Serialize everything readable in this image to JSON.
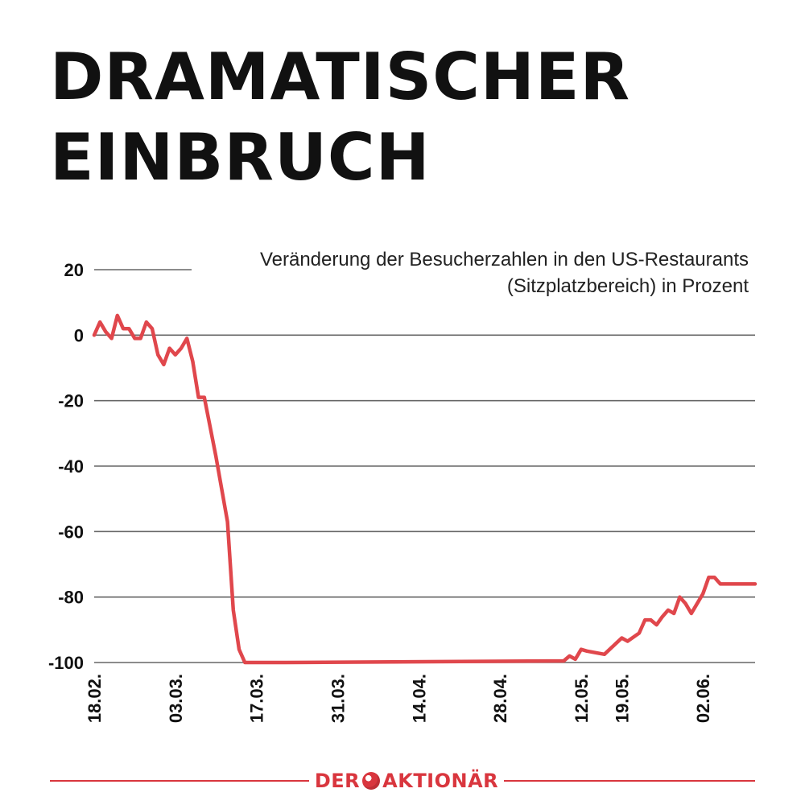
{
  "headline": {
    "line1": "DRAMATISCHER",
    "line2": "EINBRUCH"
  },
  "chart_data": {
    "type": "line",
    "title": "DRAMATISCHER EINBRUCH",
    "subtitle": [
      "Veränderung der Besucherzahlen in den US-Restaurants",
      "(Sitzplatzbereich) in Prozent"
    ],
    "ylim": [
      -100,
      20
    ],
    "yticks": [
      20,
      0,
      -20,
      -40,
      -60,
      -80,
      -100
    ],
    "ytick_labels": [
      "20",
      "0",
      "-20",
      "-40",
      "-60",
      "-80",
      "-100"
    ],
    "xlim": [
      "2020-02-18",
      "2020-06-11"
    ],
    "xtick_labels": [
      "18.02.",
      "03.03.",
      "17.03.",
      "31.03.",
      "14.04.",
      "28.04.",
      "12.05.",
      "19.05.",
      "02.06."
    ],
    "xtick_dates": [
      "2020-02-18",
      "2020-03-03",
      "2020-03-17",
      "2020-03-31",
      "2020-04-14",
      "2020-04-28",
      "2020-05-12",
      "2020-05-19",
      "2020-06-02"
    ],
    "line_color": "#e0474c",
    "grid": true,
    "series": [
      {
        "x": [
          "2020-02-18",
          "2020-02-19",
          "2020-02-20",
          "2020-02-21",
          "2020-02-22",
          "2020-02-23",
          "2020-02-24",
          "2020-02-25",
          "2020-02-26",
          "2020-02-27",
          "2020-02-28",
          "2020-02-29",
          "2020-03-01",
          "2020-03-02",
          "2020-03-03",
          "2020-03-04",
          "2020-03-05",
          "2020-03-06",
          "2020-03-07",
          "2020-03-08",
          "2020-03-09",
          "2020-03-10",
          "2020-03-11",
          "2020-03-12",
          "2020-03-13",
          "2020-03-14",
          "2020-03-15",
          "2020-03-16",
          "2020-03-17",
          "2020-03-18",
          "2020-03-19",
          "2020-03-20",
          "2020-03-21",
          "2020-03-22",
          "2020-05-09",
          "2020-05-10",
          "2020-05-11",
          "2020-05-12",
          "2020-05-13",
          "2020-05-16",
          "2020-05-19",
          "2020-05-20",
          "2020-05-22",
          "2020-05-23",
          "2020-05-24",
          "2020-05-25",
          "2020-05-26",
          "2020-05-27",
          "2020-05-28",
          "2020-05-29",
          "2020-05-30",
          "2020-05-31",
          "2020-06-01",
          "2020-06-02",
          "2020-06-03",
          "2020-06-04",
          "2020-06-05",
          "2020-06-07",
          "2020-06-08",
          "2020-06-09",
          "2020-06-10",
          "2020-06-11"
        ],
        "values": [
          0,
          4,
          1,
          -1,
          6,
          2,
          2,
          -1,
          -1,
          4,
          2,
          -6,
          -9,
          -4,
          -6,
          -4,
          -1,
          -8,
          -19,
          -19,
          -28,
          -37,
          -47,
          -57,
          -84,
          -96,
          -100,
          -100,
          -100,
          -100,
          -100,
          -100,
          -100,
          -100,
          -99.5,
          -98,
          -99,
          -96,
          -96.5,
          -97.5,
          -92.5,
          -93.5,
          -91,
          -87,
          -87,
          -88.5,
          -86,
          -84,
          -85,
          -80,
          -82,
          -85,
          -82,
          -79,
          -74,
          -74,
          -76,
          -76,
          -76,
          -76,
          -76,
          -76
        ]
      }
    ]
  },
  "logo": {
    "left": "DER",
    "right": "AKTIONÄR"
  }
}
